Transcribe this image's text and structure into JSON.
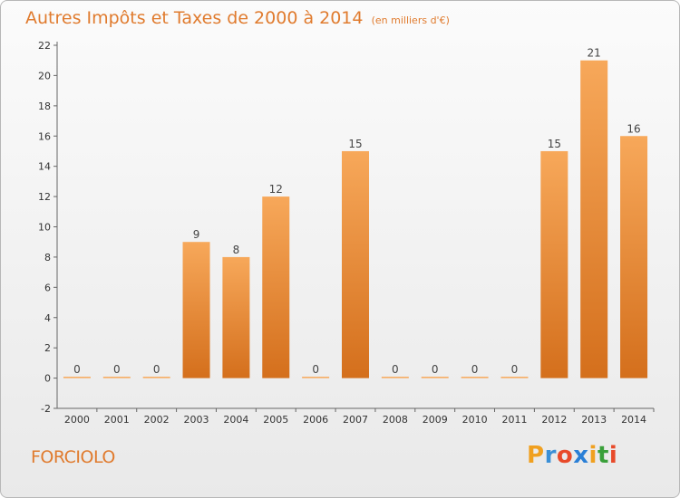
{
  "header": {
    "title": "Autres Impôts et Taxes de 2000 à 2014",
    "unit": "(en milliers d'€)"
  },
  "commune": "FORCIOLO",
  "logo": {
    "letters": [
      "P",
      "r",
      "o",
      "x",
      "i",
      "t",
      "i"
    ],
    "colors": [
      "#f0a020",
      "#3a8fd6",
      "#e84a2a",
      "#2a7fd6",
      "#f0a020",
      "#3aa03a",
      "#e84a2a"
    ]
  },
  "colors": {
    "bar_light": "#f7a85a",
    "bar_dark": "#d46f1c",
    "accent": "#e07b2e"
  },
  "chart_data": {
    "type": "bar",
    "title": "Autres Impôts et Taxes de 2000 à 2014",
    "subtitle": "(en milliers d'€)",
    "categories": [
      "2000",
      "2001",
      "2002",
      "2003",
      "2004",
      "2005",
      "2006",
      "2007",
      "2008",
      "2009",
      "2010",
      "2011",
      "2012",
      "2013",
      "2014"
    ],
    "values": [
      0,
      0,
      0,
      9,
      8,
      12,
      0,
      15,
      0,
      0,
      0,
      0,
      15,
      21,
      16
    ],
    "value_labels": [
      "0",
      "0",
      "0",
      "9",
      "8",
      "12",
      "0",
      "15",
      "0",
      "0",
      "0",
      "0",
      "15",
      "21",
      "16"
    ],
    "ylim": [
      -2,
      22
    ],
    "yticks": [
      -2,
      0,
      2,
      4,
      6,
      8,
      10,
      12,
      14,
      16,
      18,
      20,
      22
    ],
    "grid": false,
    "legend": "none"
  }
}
